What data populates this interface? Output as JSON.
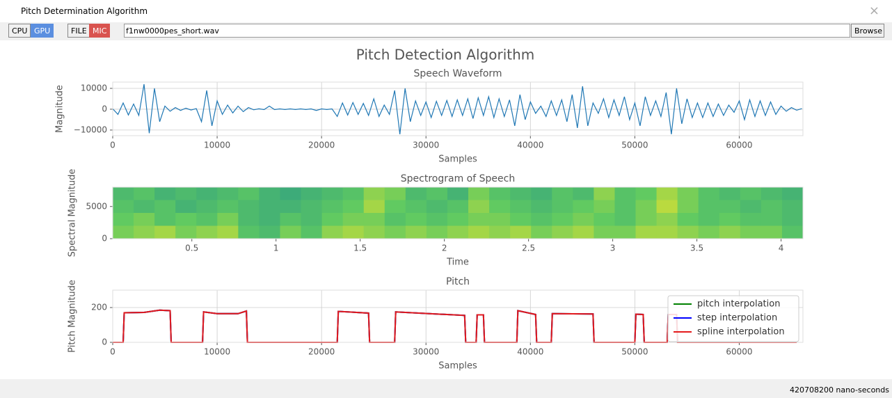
{
  "window": {
    "title": "Pitch Determination Algorithm",
    "close": "×"
  },
  "toolbar": {
    "cpu": "CPU",
    "gpu": "GPU",
    "file": "FILE",
    "mic": "MIC",
    "filename": "f1nw0000pes_short.wav",
    "browse": "Browse"
  },
  "figure": {
    "title": "Pitch Detection Algorithm"
  },
  "status": "420708200 nano-seconds",
  "chart_data": [
    {
      "type": "line",
      "title": "Speech Waveform",
      "x_label": "Samples",
      "y_label": "Magnitude",
      "color": "#1f77b4",
      "x": [
        0,
        500,
        1000,
        1500,
        2000,
        2500,
        3000,
        3500,
        4000,
        4500,
        5000,
        5500,
        6000,
        6500,
        7000,
        7500,
        8000,
        8500,
        9000,
        9500,
        10000,
        10500,
        11000,
        11500,
        12000,
        12500,
        13000,
        13500,
        14000,
        14500,
        15000,
        15500,
        16000,
        16500,
        17000,
        17500,
        18000,
        18500,
        19000,
        19500,
        20000,
        20500,
        21000,
        21500,
        22000,
        22500,
        23000,
        23500,
        24000,
        24500,
        25000,
        25500,
        26000,
        26500,
        27000,
        27500,
        28000,
        28500,
        29000,
        29500,
        30000,
        30500,
        31000,
        31500,
        32000,
        32500,
        33000,
        33500,
        34000,
        34500,
        35000,
        35500,
        36000,
        36500,
        37000,
        37500,
        38000,
        38500,
        39000,
        39500,
        40000,
        40500,
        41000,
        41500,
        42000,
        42500,
        43000,
        43500,
        44000,
        44500,
        45000,
        45500,
        46000,
        46500,
        47000,
        47500,
        48000,
        48500,
        49000,
        49500,
        50000,
        50500,
        51000,
        51500,
        52000,
        52500,
        53000,
        53500,
        54000,
        54500,
        55000,
        55500,
        56000,
        56500,
        57000,
        57500,
        58000,
        58500,
        59000,
        59500,
        60000,
        60500,
        61000,
        61500,
        62000,
        62500,
        63000,
        63500,
        64000,
        64500,
        65000,
        65500,
        66000
      ],
      "values": [
        200,
        -2500,
        3000,
        -2800,
        2500,
        -3000,
        12000,
        -11500,
        10000,
        -6000,
        1500,
        -1000,
        800,
        -600,
        500,
        -400,
        300,
        -6000,
        9000,
        -8000,
        4000,
        -2500,
        2000,
        -1800,
        1500,
        -1200,
        800,
        -300,
        200,
        -200,
        1500,
        -200,
        150,
        -150,
        150,
        -150,
        150,
        -150,
        150,
        -600,
        150,
        -150,
        150,
        -3500,
        3000,
        -2800,
        3200,
        -2500,
        2800,
        -3000,
        5000,
        -3500,
        2000,
        -2500,
        9000,
        -12000,
        10000,
        -6000,
        4000,
        -3000,
        3500,
        -4000,
        3800,
        -3000,
        4200,
        -3500,
        4500,
        -3000,
        5000,
        -4500,
        5500,
        -3000,
        6000,
        -4000,
        5000,
        -3500,
        4500,
        -8000,
        7000,
        -5000,
        3500,
        -2000,
        1500,
        -3500,
        4000,
        -3000,
        4500,
        -6000,
        7000,
        -9000,
        11000,
        -8000,
        3000,
        -2000,
        5000,
        -4000,
        4500,
        -3000,
        6000,
        -5000,
        3000,
        -8000,
        6000,
        -3000,
        4000,
        -3500,
        8000,
        -12000,
        10000,
        -7000,
        5000,
        -4000,
        3000,
        -4000,
        3000,
        -3500,
        2500,
        -3000,
        2000,
        -1500,
        4000,
        -5000,
        4500,
        -3500,
        4000,
        -3000,
        3500,
        -2500,
        1500,
        -1000,
        800,
        -500,
        300
      ],
      "xlim": [
        0,
        66100
      ],
      "xticks": [
        0,
        10000,
        20000,
        30000,
        40000,
        50000,
        60000
      ],
      "ylim": [
        -12700,
        13000
      ],
      "yticks": [
        {
          "value": -10000,
          "label": "−10000"
        },
        0,
        10000
      ],
      "grid": true
    },
    {
      "type": "heatmap",
      "title": "Spectrogram of Speech",
      "x_label": "Time",
      "y_label": "Spectral Magnitude",
      "colormap": "viridis",
      "zlim": [
        0,
        1
      ],
      "values": [
        [
          0.55,
          0.6,
          0.5,
          0.55,
          0.5,
          0.55,
          0.6,
          0.5,
          0.45,
          0.5,
          0.55,
          0.6,
          0.75,
          0.7,
          0.55,
          0.6,
          0.5,
          0.7,
          0.6,
          0.55,
          0.5,
          0.6,
          0.55,
          0.75,
          0.6,
          0.65,
          0.8,
          0.7,
          0.6,
          0.55,
          0.6,
          0.55,
          0.5
        ],
        [
          0.6,
          0.55,
          0.6,
          0.5,
          0.55,
          0.6,
          0.55,
          0.5,
          0.5,
          0.55,
          0.6,
          0.65,
          0.8,
          0.65,
          0.6,
          0.55,
          0.6,
          0.75,
          0.65,
          0.6,
          0.55,
          0.6,
          0.65,
          0.7,
          0.6,
          0.7,
          0.85,
          0.7,
          0.6,
          0.6,
          0.55,
          0.6,
          0.55
        ],
        [
          0.65,
          0.7,
          0.6,
          0.65,
          0.6,
          0.7,
          0.55,
          0.5,
          0.6,
          0.55,
          0.65,
          0.7,
          0.7,
          0.6,
          0.65,
          0.6,
          0.65,
          0.7,
          0.7,
          0.65,
          0.6,
          0.65,
          0.7,
          0.65,
          0.6,
          0.7,
          0.75,
          0.65,
          0.6,
          0.65,
          0.6,
          0.6,
          0.55
        ],
        [
          0.7,
          0.75,
          0.8,
          0.7,
          0.75,
          0.8,
          0.6,
          0.55,
          0.7,
          0.6,
          0.75,
          0.8,
          0.75,
          0.7,
          0.75,
          0.7,
          0.75,
          0.8,
          0.75,
          0.8,
          0.7,
          0.75,
          0.8,
          0.7,
          0.7,
          0.8,
          0.8,
          0.75,
          0.7,
          0.75,
          0.7,
          0.7,
          0.6
        ]
      ],
      "xlim": [
        0.03,
        4.13
      ],
      "xticks": [
        0.5,
        1.0,
        1.5,
        2.0,
        2.5,
        3.0,
        3.5,
        4.0
      ],
      "ylim": [
        0,
        8000
      ],
      "yticks": [
        0,
        5000
      ],
      "grid": false
    },
    {
      "type": "line",
      "title": "Pitch",
      "x_label": "Samples",
      "y_label": "Pitch Magnitude",
      "x": [
        0,
        1000,
        1100,
        3000,
        4500,
        5500,
        5600,
        8600,
        8700,
        10000,
        12000,
        12800,
        12900,
        21500,
        21600,
        24500,
        24600,
        27000,
        27100,
        33700,
        33800,
        34800,
        34900,
        35500,
        35600,
        38700,
        38800,
        40500,
        40600,
        42000,
        42100,
        46000,
        46100,
        50000,
        50100,
        50800,
        50900,
        53100,
        53200,
        54000,
        54100,
        65500
      ],
      "series": [
        {
          "name": "pitch interpolation",
          "color": "#008000",
          "values": [
            0,
            0,
            170,
            172,
            185,
            182,
            0,
            0,
            175,
            165,
            165,
            180,
            0,
            0,
            178,
            168,
            0,
            0,
            175,
            155,
            0,
            0,
            158,
            158,
            0,
            0,
            182,
            160,
            0,
            0,
            165,
            163,
            0,
            0,
            162,
            160,
            0,
            0,
            160,
            160,
            0,
            0
          ]
        },
        {
          "name": "step interpolation",
          "color": "#0000ff",
          "values": [
            0,
            0,
            170,
            172,
            185,
            182,
            0,
            0,
            175,
            165,
            165,
            180,
            0,
            0,
            178,
            168,
            0,
            0,
            175,
            155,
            0,
            0,
            158,
            158,
            0,
            0,
            182,
            160,
            0,
            0,
            165,
            163,
            0,
            0,
            162,
            160,
            0,
            0,
            160,
            160,
            0,
            0
          ]
        },
        {
          "name": "spline interpolation",
          "color": "#e41a1c",
          "values": [
            0,
            0,
            170,
            172,
            185,
            182,
            0,
            0,
            175,
            165,
            165,
            180,
            0,
            0,
            178,
            168,
            0,
            0,
            175,
            155,
            0,
            0,
            158,
            158,
            0,
            0,
            182,
            160,
            0,
            0,
            165,
            163,
            0,
            0,
            162,
            160,
            0,
            0,
            160,
            160,
            0,
            0
          ]
        }
      ],
      "xlim": [
        0,
        66100
      ],
      "xticks": [
        0,
        10000,
        20000,
        30000,
        40000,
        50000,
        60000
      ],
      "ylim": [
        0,
        300
      ],
      "yticks": [
        0,
        200
      ],
      "grid": true,
      "legend": "upper right"
    }
  ]
}
